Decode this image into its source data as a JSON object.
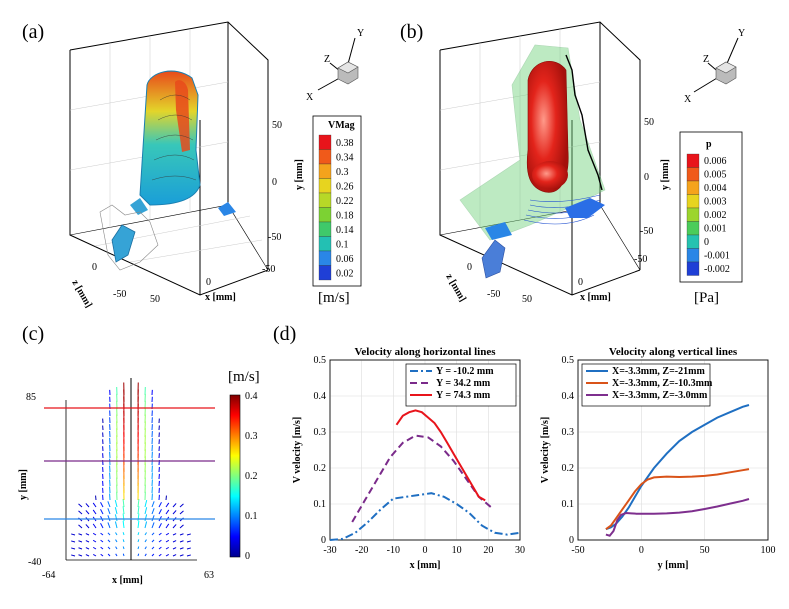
{
  "figure": {
    "panel_a": {
      "label": "(a)",
      "axis_y": "y [mm]",
      "axis_x": "x [mm]",
      "axis_z": "z [mm]",
      "y_ticks": [
        "50",
        "0",
        "-50"
      ],
      "x_ticks": [
        "-50",
        "0",
        "50"
      ],
      "z_ticks": [
        "0",
        "-50"
      ],
      "triad": {
        "y": "Y",
        "z": "Z",
        "x": "X"
      },
      "colorbar": {
        "title": "VMag",
        "unit": "[m/s]",
        "labels": [
          "0.38",
          "0.34",
          "0.3",
          "0.26",
          "0.22",
          "0.18",
          "0.14",
          "0.1",
          "0.06",
          "0.02"
        ],
        "colors": [
          "#e8141b",
          "#f05a1a",
          "#f5a31c",
          "#e7d41f",
          "#b7d827",
          "#7cd233",
          "#3fc96a",
          "#23c0b3",
          "#2a86e6",
          "#1f3fd6"
        ]
      }
    },
    "panel_b": {
      "label": "(b)",
      "axis_y": "y [mm]",
      "axis_x": "x [mm]",
      "axis_z": "z [mm]",
      "y_ticks": [
        "50",
        "0",
        "-50"
      ],
      "x_ticks": [
        "-50",
        "0",
        "50"
      ],
      "z_ticks": [
        "0",
        "-50"
      ],
      "triad": {
        "y": "Y",
        "z": "Z",
        "x": "X"
      },
      "colorbar": {
        "title": "p",
        "unit": "[Pa]",
        "labels": [
          "0.006",
          "0.005",
          "0.004",
          "0.003",
          "0.002",
          "0.001",
          "0",
          "-0.001",
          "-0.002"
        ],
        "colors": [
          "#e8141b",
          "#f05a1a",
          "#f5a31c",
          "#e7d41f",
          "#9cd52e",
          "#4bcc5a",
          "#25c2b0",
          "#2a86e6",
          "#1f3fd6"
        ]
      }
    },
    "panel_c": {
      "label": "(c)",
      "xlabel": "x [mm]",
      "ylabel": "y [mm]",
      "x_ticks": [
        "-64",
        "63"
      ],
      "y_ticks": [
        "85",
        "-40"
      ],
      "colorbar": {
        "unit": "[m/s]",
        "ticks": [
          "0.4",
          "0.3",
          "0.2",
          "0.1",
          "0"
        ]
      },
      "line_colors": [
        "#e8141b",
        "#7a2a8a",
        "#2a86e6"
      ]
    },
    "panel_d": {
      "label": "(d)"
    }
  },
  "chart_data": [
    {
      "type": "line",
      "title": "Velocity along horizontal lines",
      "xlabel": "x [mm]",
      "ylabel": "V velocity [m/s]",
      "xlim": [
        -30,
        30
      ],
      "ylim": [
        0,
        0.5
      ],
      "x_ticks": [
        -30,
        -20,
        -10,
        0,
        10,
        20,
        30
      ],
      "y_ticks": [
        0,
        0.1,
        0.2,
        0.3,
        0.4,
        0.5
      ],
      "legend": "top-right",
      "series": [
        {
          "name": "Y = -10.2 mm",
          "color": "#1f6fc2",
          "dash": "8,3,2,3",
          "x": [
            -30,
            -26,
            -22,
            -18,
            -14,
            -10,
            -6,
            -2,
            2,
            6,
            10,
            14,
            18,
            22,
            26,
            30
          ],
          "y": [
            0,
            0.003,
            0.02,
            0.05,
            0.085,
            0.115,
            0.12,
            0.125,
            0.13,
            0.12,
            0.1,
            0.075,
            0.04,
            0.02,
            0.015,
            0.02
          ]
        },
        {
          "name": "Y = 34.2 mm",
          "color": "#7a2a8a",
          "dash": "7,4",
          "x": [
            -23,
            -19,
            -15,
            -11,
            -7,
            -3,
            1,
            5,
            9,
            13,
            17,
            21
          ],
          "y": [
            0.05,
            0.11,
            0.17,
            0.23,
            0.27,
            0.29,
            0.285,
            0.26,
            0.22,
            0.17,
            0.12,
            0.09
          ]
        },
        {
          "name": "Y = 74.3 mm",
          "color": "#e8141b",
          "dash": "",
          "x": [
            -9,
            -7,
            -5,
            -3,
            -1,
            1,
            3,
            5,
            7,
            9,
            11,
            13,
            15,
            17,
            19
          ],
          "y": [
            0.32,
            0.345,
            0.355,
            0.36,
            0.355,
            0.34,
            0.325,
            0.3,
            0.27,
            0.24,
            0.21,
            0.18,
            0.15,
            0.12,
            0.11
          ]
        }
      ]
    },
    {
      "type": "line",
      "title": "Velocity along vertical lines",
      "xlabel": "y [mm]",
      "ylabel": "V velocity [m/s]",
      "xlim": [
        -50,
        100
      ],
      "ylim": [
        0,
        0.5
      ],
      "x_ticks": [
        -50,
        0,
        50,
        100
      ],
      "y_ticks": [
        0,
        0.1,
        0.2,
        0.3,
        0.4,
        0.5
      ],
      "legend": "top-left",
      "series": [
        {
          "name": "X=-3.3mm, Z=-21mm",
          "color": "#1f6fc2",
          "dash": "",
          "x": [
            -28,
            -24,
            -20,
            -15,
            -10,
            -5,
            0,
            10,
            20,
            30,
            40,
            50,
            60,
            70,
            80,
            85
          ],
          "y": [
            0.03,
            0.035,
            0.045,
            0.065,
            0.09,
            0.12,
            0.15,
            0.2,
            0.24,
            0.275,
            0.3,
            0.32,
            0.34,
            0.355,
            0.37,
            0.375
          ]
        },
        {
          "name": "X=-3.3mm, Z=-10.3mm",
          "color": "#d95319",
          "dash": "",
          "x": [
            -28,
            -24,
            -20,
            -15,
            -10,
            -5,
            0,
            5,
            10,
            20,
            30,
            40,
            50,
            60,
            70,
            80,
            85
          ],
          "y": [
            0.03,
            0.04,
            0.06,
            0.085,
            0.11,
            0.135,
            0.155,
            0.168,
            0.174,
            0.176,
            0.175,
            0.176,
            0.178,
            0.182,
            0.188,
            0.194,
            0.197
          ]
        },
        {
          "name": "X=-3.3mm, Z=-3.0mm",
          "color": "#7e2f8e",
          "dash": "",
          "x": [
            -28,
            -25,
            -22,
            -19,
            -16,
            -12,
            -8,
            -4,
            0,
            10,
            20,
            30,
            40,
            50,
            60,
            70,
            80,
            85
          ],
          "y": [
            0.015,
            0.012,
            0.025,
            0.055,
            0.07,
            0.075,
            0.074,
            0.073,
            0.073,
            0.073,
            0.074,
            0.076,
            0.08,
            0.086,
            0.093,
            0.101,
            0.109,
            0.114
          ]
        }
      ]
    }
  ]
}
